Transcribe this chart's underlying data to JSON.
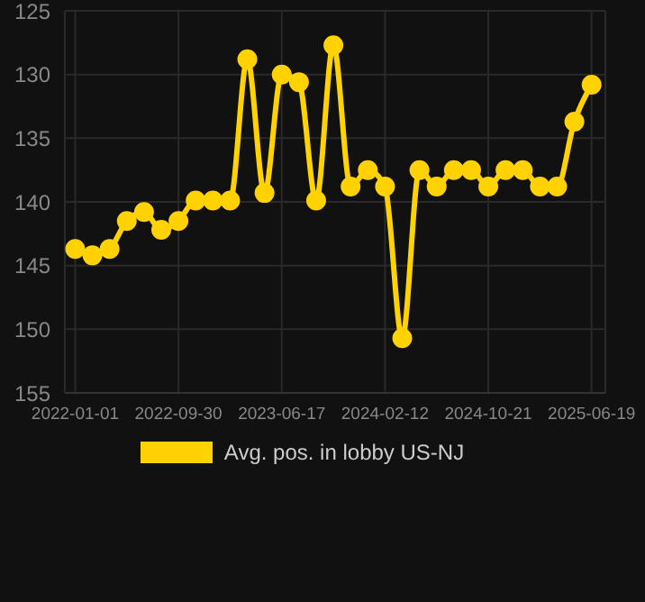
{
  "chart_data": {
    "type": "line",
    "categories": [
      "2022-01-01",
      null,
      null,
      null,
      null,
      null,
      "2022-09-30",
      null,
      null,
      null,
      null,
      null,
      "2023-06-17",
      null,
      null,
      null,
      null,
      null,
      "2024-02-12",
      null,
      null,
      null,
      null,
      null,
      "2024-10-21",
      null,
      null,
      null,
      null,
      null,
      "2025-06-19"
    ],
    "series": [
      {
        "name": "Avg. pos. in lobby US-NJ",
        "color": "#ffd200",
        "values": [
          143.7,
          144.2,
          143.7,
          141.5,
          140.8,
          142.2,
          141.5,
          139.9,
          139.9,
          139.9,
          128.8,
          139.3,
          130.0,
          130.6,
          139.9,
          127.7,
          138.8,
          137.5,
          138.8,
          150.7,
          137.5,
          138.8,
          137.5,
          137.5,
          138.8,
          137.5,
          137.5,
          138.8,
          138.8,
          133.7,
          130.8
        ]
      }
    ],
    "ylim": [
      155,
      125
    ],
    "yticks": [
      125,
      130,
      135,
      140,
      145,
      150,
      155
    ],
    "grid": true,
    "legend": "bottom",
    "marker": "circle",
    "line_style": "solid"
  }
}
